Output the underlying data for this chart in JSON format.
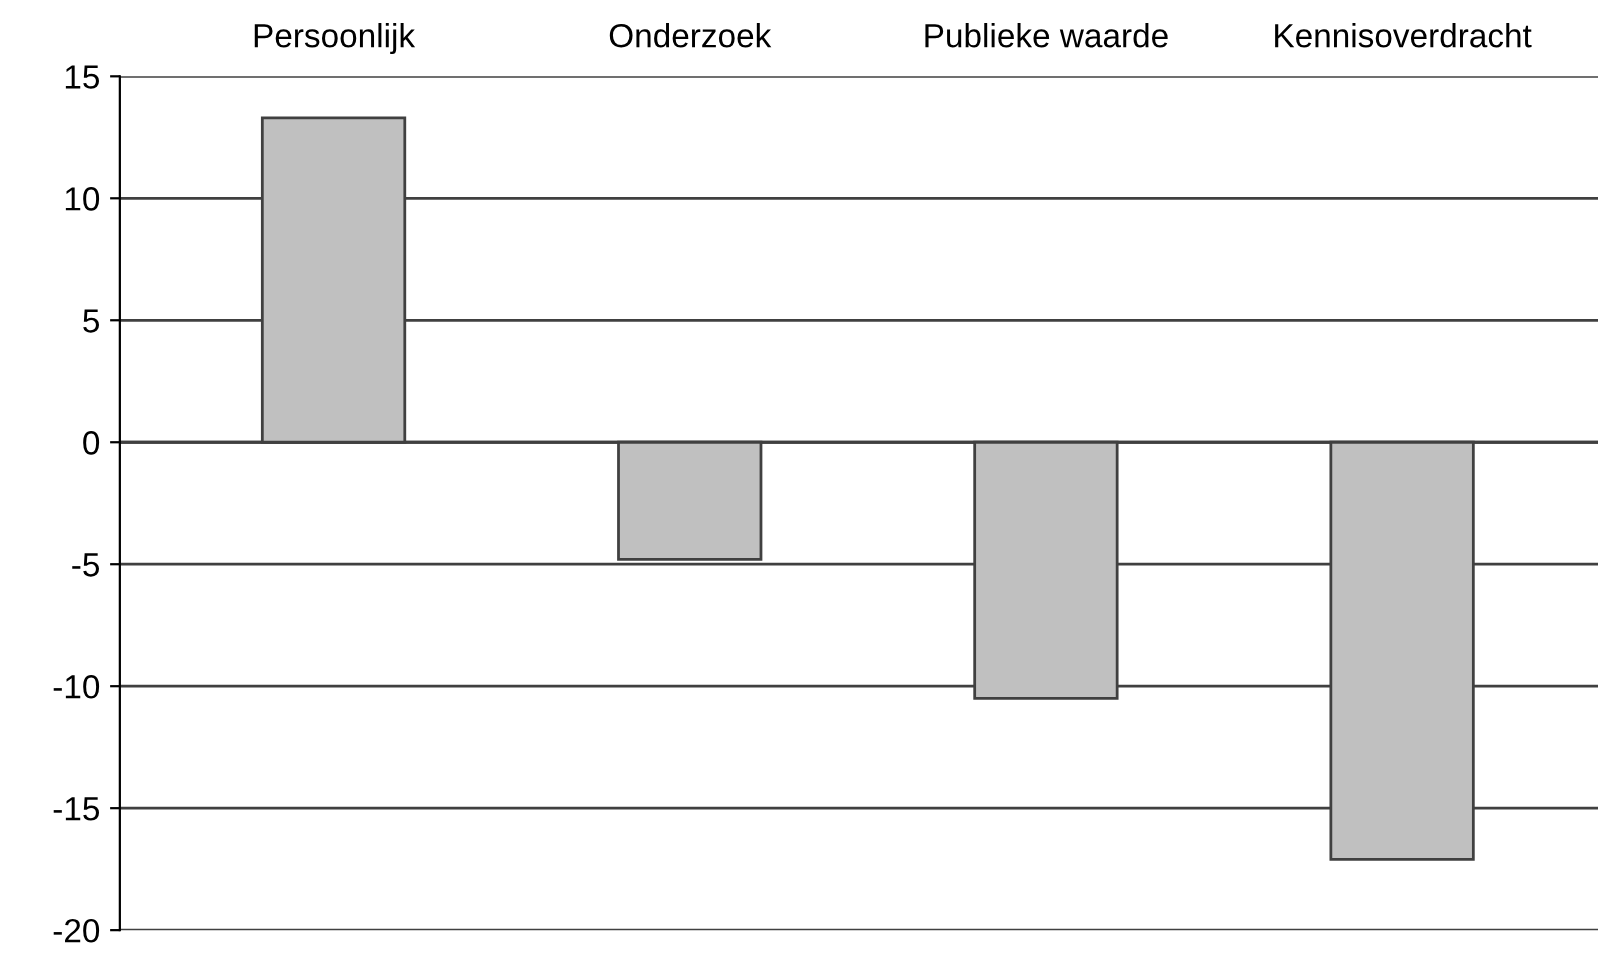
{
  "chart_data": {
    "type": "bar",
    "categories": [
      "Persoonlijk",
      "Onderzoek",
      "Publieke waarde",
      "Kennisoverdracht"
    ],
    "values": [
      13.3,
      -4.8,
      -10.5,
      -17.1
    ],
    "color": "#c0c0c0",
    "ylim": [
      -20,
      15
    ],
    "yticks": [
      -20,
      -15,
      -10,
      -5,
      0,
      5,
      10,
      15
    ],
    "grid": "y",
    "legend": false
  }
}
